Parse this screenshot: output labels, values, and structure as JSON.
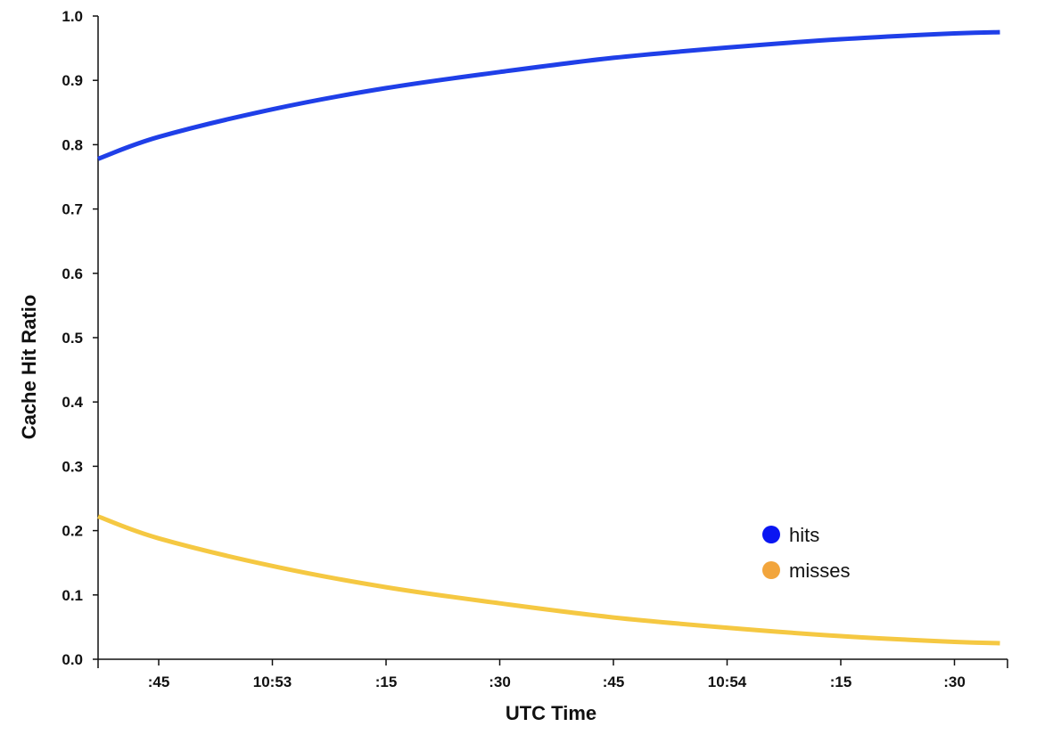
{
  "chart_data": {
    "type": "line",
    "title": "",
    "xlabel": "UTC Time",
    "ylabel": "Cache Hit Ratio",
    "x_ticks": [
      ":45",
      "10:53",
      ":15",
      ":30",
      ":45",
      "10:54",
      ":15",
      ":30"
    ],
    "x_tick_times": [
      "10:52:45",
      "10:53:00",
      "10:53:15",
      "10:53:30",
      "10:53:45",
      "10:54:00",
      "10:54:15",
      "10:54:30"
    ],
    "xlim": [
      "10:52:37",
      "10:54:37"
    ],
    "ylim": [
      0,
      1
    ],
    "y_ticks": [
      "0.0",
      "0.1",
      "0.2",
      "0.3",
      "0.4",
      "0.5",
      "0.6",
      "0.7",
      "0.8",
      "0.9",
      "1.0"
    ],
    "grid": false,
    "legend_position": "bottom-right",
    "series": [
      {
        "name": "hits",
        "color": "#1f3fe8",
        "legend_color": "#0a16f2",
        "x": [
          "10:52:37",
          "10:52:45",
          "10:53:00",
          "10:53:15",
          "10:53:30",
          "10:53:45",
          "10:54:00",
          "10:54:15",
          "10:54:30",
          "10:54:36"
        ],
        "values": [
          0.778,
          0.812,
          0.855,
          0.888,
          0.913,
          0.935,
          0.951,
          0.964,
          0.973,
          0.975
        ]
      },
      {
        "name": "misses",
        "color": "#f5c842",
        "legend_color": "#f2a53c",
        "x": [
          "10:52:37",
          "10:52:45",
          "10:53:00",
          "10:53:15",
          "10:53:30",
          "10:53:45",
          "10:54:00",
          "10:54:15",
          "10:54:30",
          "10:54:36"
        ],
        "values": [
          0.222,
          0.188,
          0.145,
          0.112,
          0.087,
          0.065,
          0.049,
          0.036,
          0.027,
          0.025
        ]
      }
    ]
  }
}
